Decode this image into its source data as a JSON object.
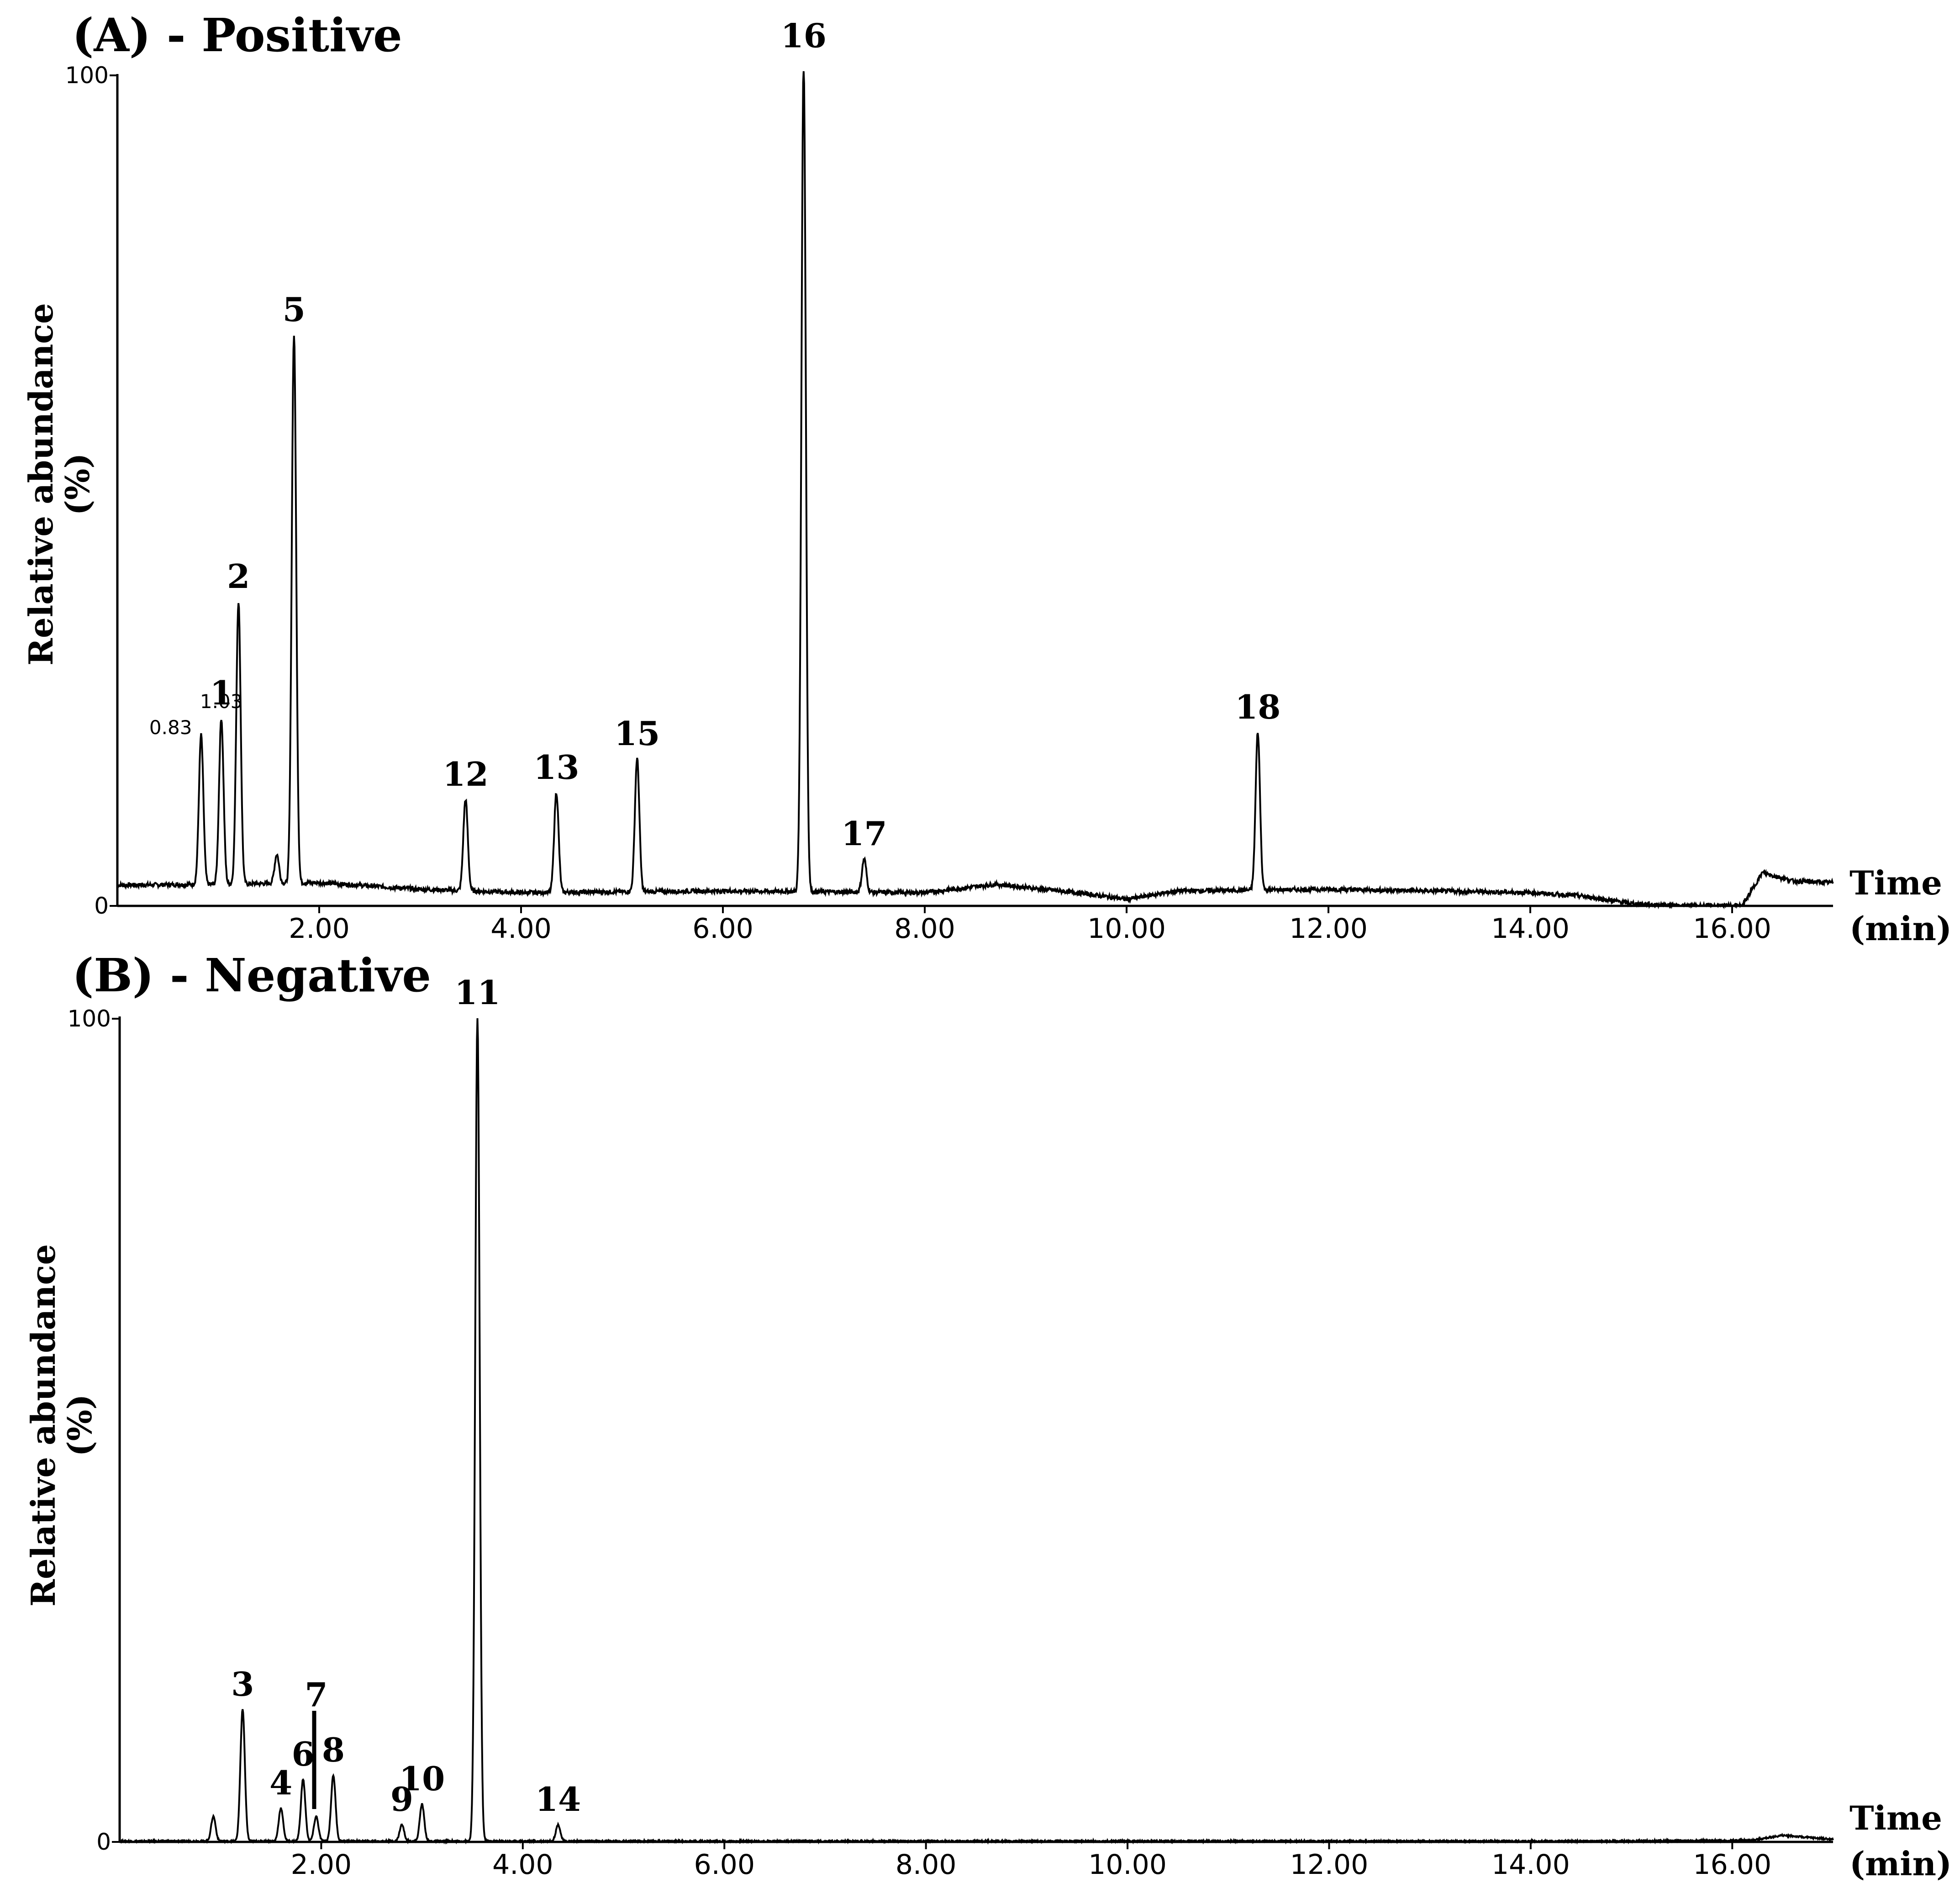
{
  "chart_data": [
    {
      "type": "line",
      "title": "(A) - Positive",
      "ylabel": "Relative abundance",
      "ylabel_unit": "(%)",
      "xlabel": "Time",
      "xlabel_unit": "(min)",
      "xlim": [
        0,
        17
      ],
      "ylim": [
        0,
        100
      ],
      "y_ticks": [
        "0",
        "100"
      ],
      "x_ticks": [
        {
          "value": 2,
          "label": "2.00"
        },
        {
          "value": 4,
          "label": "4.00"
        },
        {
          "value": 6,
          "label": "6.00"
        },
        {
          "value": 8,
          "label": "8.00"
        },
        {
          "value": 10,
          "label": "10.00"
        },
        {
          "value": 12,
          "label": "12.00"
        },
        {
          "value": 14,
          "label": "14.00"
        },
        {
          "value": 16,
          "label": "16.00"
        }
      ],
      "peaks": [
        {
          "label": "",
          "rt": 0.83,
          "height": 18,
          "rt_label": "0.83"
        },
        {
          "label": "1",
          "rt": 1.03,
          "height": 20,
          "rt_label": "1.03"
        },
        {
          "label": "2",
          "rt": 1.2,
          "height": 34
        },
        {
          "label": "5",
          "rt": 1.75,
          "height": 66
        },
        {
          "label": "",
          "rt": 1.58,
          "height": 3.5
        },
        {
          "label": "12",
          "rt": 3.45,
          "height": 11
        },
        {
          "label": "13",
          "rt": 4.35,
          "height": 12
        },
        {
          "label": "15",
          "rt": 5.15,
          "height": 16
        },
        {
          "label": "16",
          "rt": 6.8,
          "height": 100
        },
        {
          "label": "17",
          "rt": 7.4,
          "height": 4
        },
        {
          "label": "18",
          "rt": 11.3,
          "height": 19
        }
      ],
      "baseline": [
        [
          0,
          2.5
        ],
        [
          1,
          2.6
        ],
        [
          2,
          2.8
        ],
        [
          3,
          2.0
        ],
        [
          4,
          1.6
        ],
        [
          6,
          1.8
        ],
        [
          8,
          1.6
        ],
        [
          8.7,
          2.6
        ],
        [
          9.5,
          1.6
        ],
        [
          10,
          0.8
        ],
        [
          10.5,
          1.8
        ],
        [
          12,
          2.0
        ],
        [
          14,
          1.6
        ],
        [
          14.5,
          1.2
        ],
        [
          15,
          0.3
        ],
        [
          15.5,
          0
        ],
        [
          16.1,
          0
        ],
        [
          16.3,
          4
        ],
        [
          16.6,
          3
        ],
        [
          17,
          2.8
        ]
      ]
    },
    {
      "type": "line",
      "title": "(B) - Negative",
      "ylabel": "Relative abundance",
      "ylabel_unit": "(%)",
      "xlabel": "Time",
      "xlabel_unit": "(min)",
      "xlim": [
        0,
        17
      ],
      "ylim": [
        0,
        100
      ],
      "y_ticks": [
        "0",
        "100"
      ],
      "x_ticks": [
        {
          "value": 2,
          "label": "2.00"
        },
        {
          "value": 4,
          "label": "4.00"
        },
        {
          "value": 6,
          "label": "6.00"
        },
        {
          "value": 8,
          "label": "8.00"
        },
        {
          "value": 10,
          "label": "10.00"
        },
        {
          "value": 12,
          "label": "12.00"
        },
        {
          "value": 14,
          "label": "14.00"
        },
        {
          "value": 16,
          "label": "16.00"
        }
      ],
      "peaks": [
        {
          "label": "",
          "rt": 0.93,
          "height": 3
        },
        {
          "label": "3",
          "rt": 1.22,
          "height": 16
        },
        {
          "label": "4",
          "rt": 1.6,
          "height": 4
        },
        {
          "label": "6",
          "rt": 1.82,
          "height": 7.5
        },
        {
          "label": "7",
          "rt": 1.95,
          "height": 3
        },
        {
          "label": "8",
          "rt": 2.12,
          "height": 8
        },
        {
          "label": "9",
          "rt": 2.8,
          "height": 2
        },
        {
          "label": "10",
          "rt": 3.0,
          "height": 4.5
        },
        {
          "label": "11",
          "rt": 3.55,
          "height": 100
        },
        {
          "label": "14",
          "rt": 4.35,
          "height": 2
        }
      ],
      "baseline": [
        [
          0,
          0.1
        ],
        [
          5,
          0.1
        ],
        [
          10,
          0.1
        ],
        [
          15,
          0.1
        ],
        [
          16.2,
          0.2
        ],
        [
          16.5,
          0.8
        ],
        [
          16.8,
          0.5
        ],
        [
          17,
          0.3
        ]
      ]
    }
  ]
}
